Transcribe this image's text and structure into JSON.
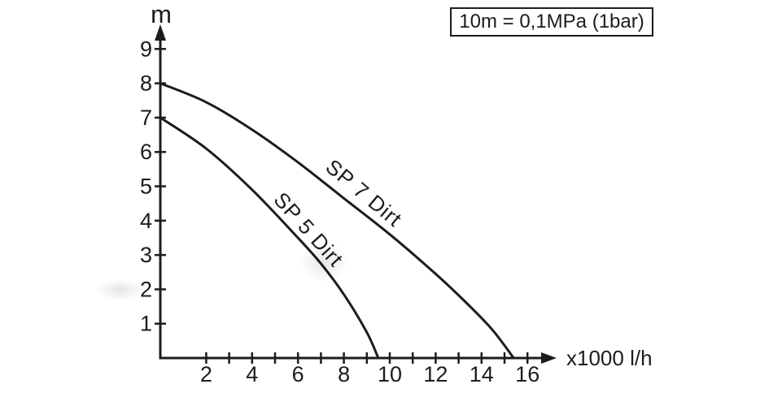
{
  "chart_data": {
    "type": "line",
    "title": "",
    "ylabel": "m",
    "xlabel": "x1000 l/h",
    "annotation": "10m = 0,1MPa (1bar)",
    "x_axis": {
      "unit": "x1000 l/h",
      "tick_values": [
        2,
        3,
        4,
        5,
        6,
        7,
        8,
        9,
        10,
        11,
        12,
        13,
        14,
        15,
        16
      ],
      "labeled_ticks": [
        2,
        4,
        6,
        8,
        10,
        12,
        14,
        16
      ],
      "range": [
        0,
        17
      ]
    },
    "y_axis": {
      "unit": "m",
      "tick_values": [
        1,
        2,
        3,
        4,
        5,
        6,
        7,
        8,
        9
      ],
      "labeled_ticks": [
        1,
        2,
        3,
        4,
        5,
        6,
        7,
        8,
        9
      ],
      "range": [
        0,
        9.8
      ],
      "faded_tick": 2
    },
    "series": [
      {
        "name": "SP 7 Dirt",
        "slug": "sp-7-dirt",
        "points": [
          [
            0,
            8
          ],
          [
            2,
            7.45
          ],
          [
            4,
            6.65
          ],
          [
            6,
            5.7
          ],
          [
            8,
            4.65
          ],
          [
            10,
            3.6
          ],
          [
            12,
            2.45
          ],
          [
            13.5,
            1.5
          ],
          [
            14.5,
            0.8
          ],
          [
            15.4,
            0
          ]
        ]
      },
      {
        "name": "SP 5 Dirt",
        "slug": "sp-5-dirt",
        "points": [
          [
            0,
            7
          ],
          [
            2,
            6.1
          ],
          [
            4,
            4.9
          ],
          [
            6,
            3.5
          ],
          [
            7,
            2.75
          ],
          [
            8,
            1.85
          ],
          [
            9,
            0.75
          ],
          [
            9.5,
            0
          ]
        ]
      }
    ],
    "legend_position": "on-curve",
    "grid": false,
    "colors": {
      "ink": "#1c1c1c",
      "background": "#ffffff",
      "faded_tick": "#8f8f8f"
    }
  }
}
